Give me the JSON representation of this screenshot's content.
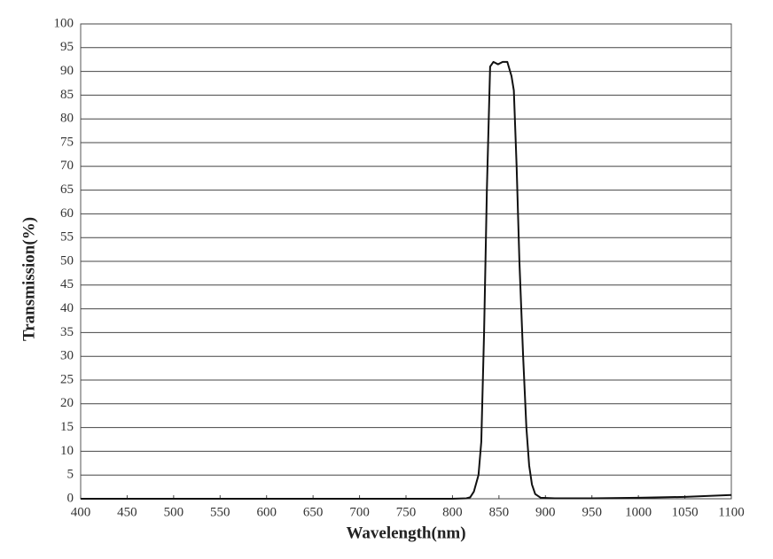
{
  "chart_data": {
    "type": "line",
    "x_label": "Wavelength(nm)",
    "y_label": "Transmission(%)",
    "x": [
      400,
      500,
      600,
      700,
      800,
      815,
      819,
      823,
      828,
      831,
      834,
      837,
      840.5,
      844,
      849,
      854,
      859,
      863.5,
      866,
      869,
      872,
      876,
      879.5,
      882.5,
      885.5,
      889,
      895,
      910,
      950,
      1000,
      1050,
      1100
    ],
    "series": [
      {
        "name": "Transmission",
        "color": "#111111",
        "values": [
          0,
          0,
          0,
          0,
          0,
          0.1,
          0.3,
          1.5,
          5,
          12,
          35,
          65,
          91,
          92,
          91.5,
          92,
          92,
          89,
          86,
          70,
          50,
          30,
          15,
          7,
          3,
          1,
          0.2,
          0.1,
          0.1,
          0.2,
          0.4,
          0.8
        ]
      }
    ],
    "xlim": [
      400,
      1100
    ],
    "xticks": [
      400,
      450,
      500,
      550,
      600,
      650,
      700,
      750,
      800,
      850,
      900,
      950,
      1000,
      1050,
      1100
    ],
    "ylim": [
      0,
      100
    ],
    "yticks": [
      0,
      5,
      10,
      15,
      20,
      25,
      30,
      35,
      40,
      45,
      50,
      55,
      60,
      65,
      70,
      75,
      80,
      85,
      90,
      95,
      100
    ],
    "grid": true
  }
}
